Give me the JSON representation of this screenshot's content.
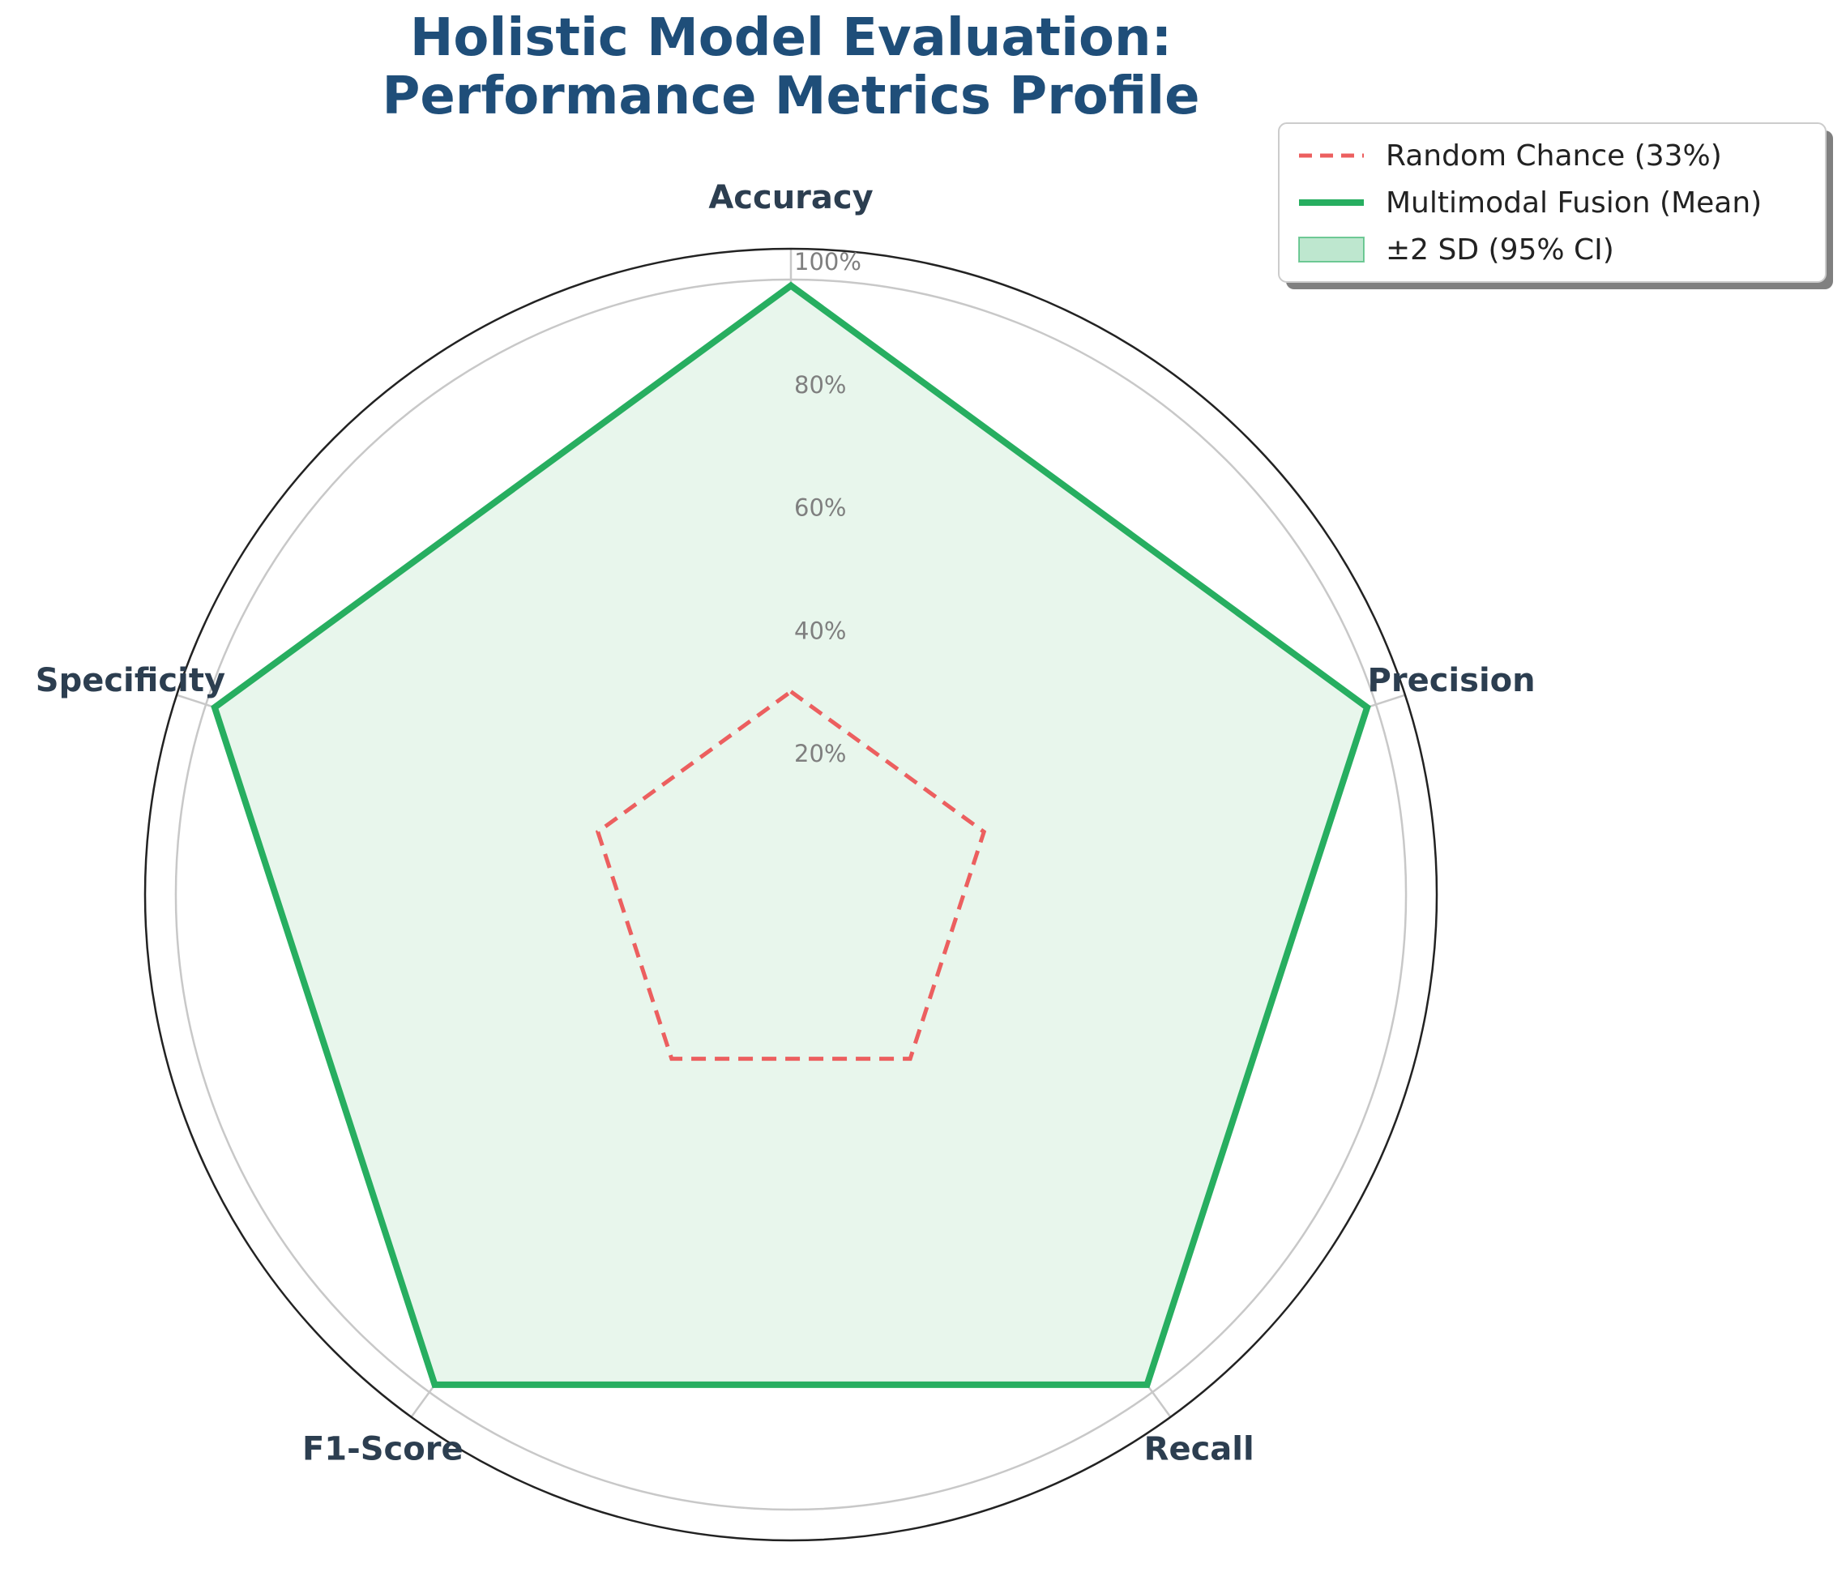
{
  "chart_data": {
    "type": "radar",
    "title": [
      "Holistic Model Evaluation:",
      "Performance Metrics Profile"
    ],
    "categories": [
      "Accuracy",
      "Precision",
      "Recall",
      "F1-Score",
      "Specificity"
    ],
    "radial_ticks": [
      "20%",
      "40%",
      "60%",
      "80%",
      "100%"
    ],
    "rlim": [
      0,
      105
    ],
    "grid": true,
    "legend_position": "top-right",
    "series": [
      {
        "name": "Random Chance (33%)",
        "values": [
          33,
          33,
          33,
          33,
          33
        ],
        "style": "dashed",
        "color": "#ec5f5f"
      },
      {
        "name": "Multimodal Fusion (Mean)",
        "values": [
          99,
          98.5,
          98.5,
          98.5,
          98.5
        ],
        "style": "solid",
        "color": "#27ae60"
      }
    ],
    "band": {
      "name": "±2 SD (95% CI)",
      "lower": [
        98.5,
        98,
        98,
        98,
        98
      ],
      "upper": [
        99.5,
        99,
        99,
        99,
        99
      ],
      "color": "#27ae60"
    },
    "colors": {
      "title": "#1f4e79",
      "axis_label": "#2c3e50",
      "fill": "#e8f6ec",
      "outer_ring": "#222222",
      "grid": "#c8c8c8"
    }
  }
}
